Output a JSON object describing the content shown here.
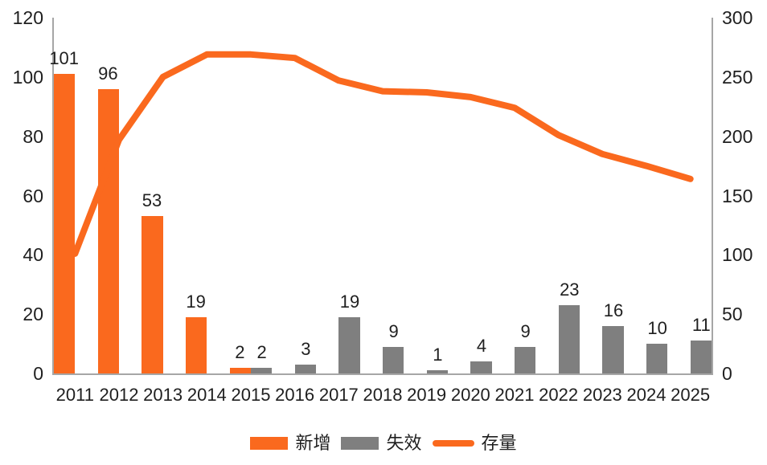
{
  "chart_data": {
    "type": "combo",
    "title": "",
    "categories": [
      "2011",
      "2012",
      "2013",
      "2014",
      "2015",
      "2016",
      "2017",
      "2018",
      "2019",
      "2020",
      "2021",
      "2022",
      "2023",
      "2024",
      "2025"
    ],
    "series": [
      {
        "name": "新增",
        "type": "bar",
        "axis": "left",
        "color": "#fa691e",
        "values": [
          101,
          96,
          53,
          19,
          2,
          0,
          0,
          0,
          0,
          0,
          0,
          0,
          0,
          0,
          0
        ]
      },
      {
        "name": "失效",
        "type": "bar",
        "axis": "left",
        "color": "#7f7f7f",
        "values": [
          0,
          0,
          0,
          0,
          2,
          3,
          19,
          9,
          1,
          4,
          9,
          23,
          16,
          10,
          11
        ]
      },
      {
        "name": "存量",
        "type": "line",
        "axis": "right",
        "color": "#fa691e",
        "values": [
          101,
          197,
          250,
          269,
          269,
          266,
          247,
          238,
          237,
          233,
          224,
          201,
          185,
          175,
          164
        ]
      }
    ],
    "left_axis": {
      "min": 0,
      "max": 120,
      "ticks": [
        0,
        20,
        40,
        60,
        80,
        100,
        120
      ]
    },
    "right_axis": {
      "min": 0,
      "max": 300,
      "ticks": [
        0,
        50,
        100,
        150,
        200,
        250,
        300
      ]
    },
    "data_labels": "shown above non-zero bars",
    "grid": false,
    "legend_position": "bottom",
    "xlabel": "",
    "ylabel": ""
  },
  "colors": {
    "orange": "#fa691e",
    "gray": "#7f7f7f",
    "axis_line": "#a6a6a6",
    "text": "#1f1f1f",
    "background": "#ffffff"
  }
}
